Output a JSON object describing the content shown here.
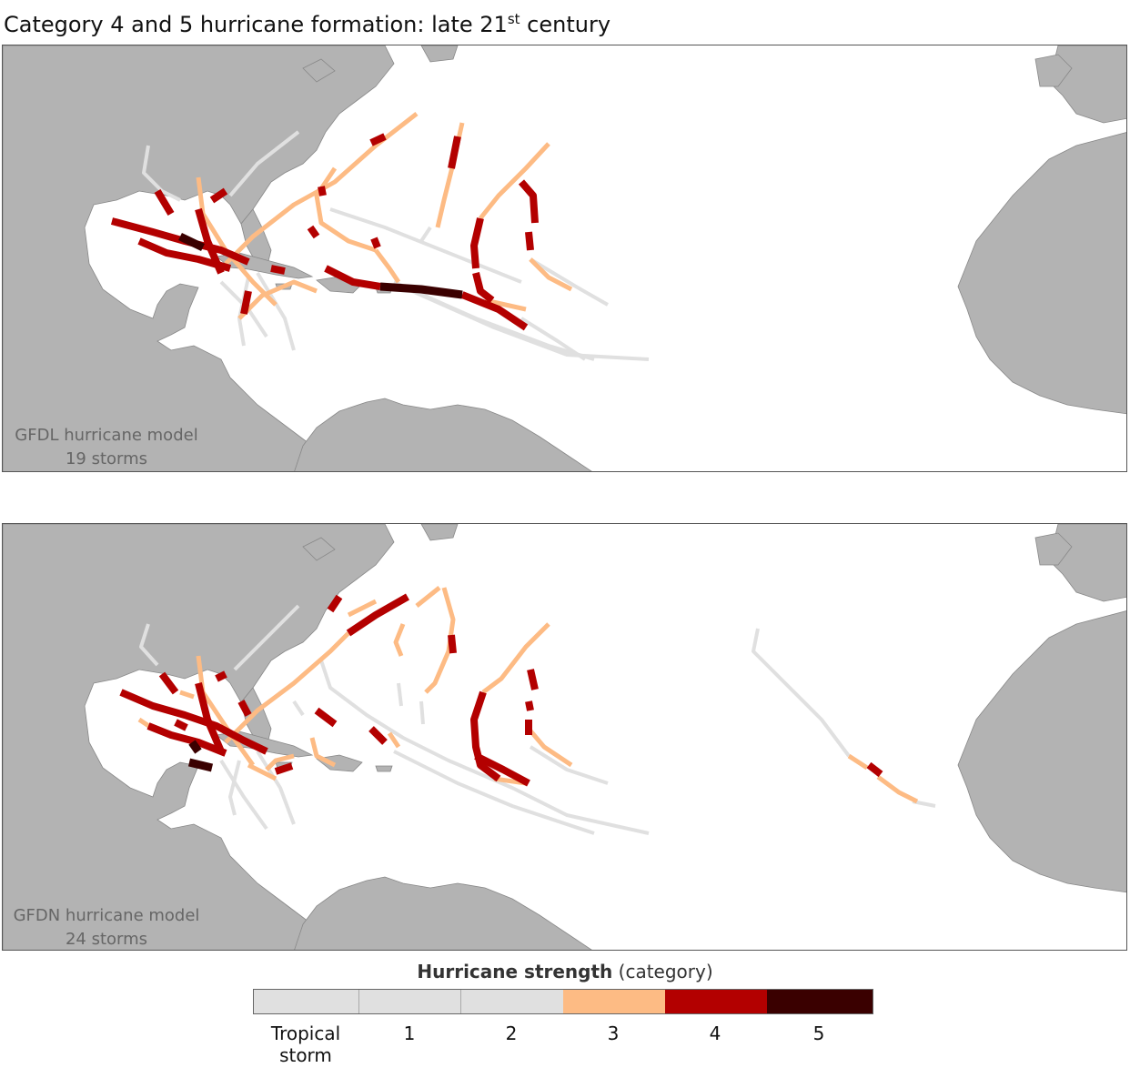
{
  "title": "Category 4 and 5 hurricane formation: late 21",
  "title_sup": "st",
  "title_tail": " century",
  "panels": [
    {
      "model": "GFDL hurricane model",
      "storms": "19 storms"
    },
    {
      "model": "GFDN hurricane model",
      "storms": "24 storms"
    }
  ],
  "legend": {
    "title_bold": "Hurricane strength",
    "title_rest": " (category)",
    "categories": [
      {
        "label_line1": "Tropical",
        "label_line2": "storm",
        "color": "#e0e0e0"
      },
      {
        "label_line1": "1",
        "label_line2": "",
        "color": "#e0e0e0"
      },
      {
        "label_line1": "2",
        "label_line2": "",
        "color": "#e0e0e0"
      },
      {
        "label_line1": "3",
        "label_line2": "",
        "color": "#fdbb84"
      },
      {
        "label_line1": "4",
        "label_line2": "",
        "color": "#b30000"
      },
      {
        "label_line1": "5",
        "label_line2": "",
        "color": "#3a0000"
      }
    ]
  },
  "colors": {
    "land": "#b3b3b3",
    "ts": "#e0e0e0",
    "cat3": "#fdbb84",
    "cat4": "#b30000",
    "cat5": "#3a0000"
  }
}
